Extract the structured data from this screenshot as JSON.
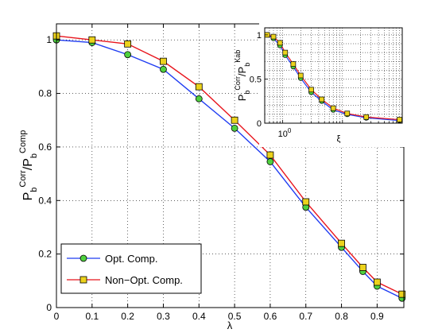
{
  "chart_data": [
    {
      "type": "line",
      "xlabel": "λ",
      "ylabel": {
        "base": "P",
        "sub1": "b",
        "sup1": "Corr",
        "sep": "/P",
        "sub2": "b",
        "sup2": "Comp"
      },
      "xlim": [
        0,
        0.975
      ],
      "ylim": [
        0,
        1.06
      ],
      "xticks": [
        "0",
        "0.1",
        "0.2",
        "0.3",
        "0.4",
        "0.5",
        "0.6",
        "0.7",
        "0.8",
        "0.9"
      ],
      "yticks": [
        "0",
        "0.2",
        "0.4",
        "0.6",
        "0.8",
        "1"
      ],
      "grid": true,
      "legend_position": "bottom-left",
      "series": [
        {
          "name": "Opt. Comp.",
          "color": "#1f3cf2",
          "marker": "circle",
          "marker_color": "#4fd13f",
          "x": [
            0,
            0.1,
            0.2,
            0.3,
            0.4,
            0.5,
            0.6,
            0.7,
            0.8,
            0.86,
            0.9,
            0.97
          ],
          "y": [
            1.0,
            0.99,
            0.945,
            0.89,
            0.78,
            0.67,
            0.545,
            0.375,
            0.225,
            0.135,
            0.08,
            0.035
          ]
        },
        {
          "name": "Non−Opt. Comp.",
          "color": "#e8141c",
          "marker": "square",
          "marker_color": "#ecd21c",
          "x": [
            0,
            0.1,
            0.2,
            0.3,
            0.4,
            0.5,
            0.6,
            0.7,
            0.8,
            0.86,
            0.9,
            0.97
          ],
          "y": [
            1.015,
            1.0,
            0.985,
            0.92,
            0.825,
            0.7,
            0.57,
            0.395,
            0.24,
            0.15,
            0.095,
            0.05
          ]
        }
      ]
    },
    {
      "type": "line",
      "xlabel": "ξ",
      "xscale": "log",
      "ylabel": {
        "base": "P",
        "sub1": "b",
        "sup1": "Corr",
        "sep": "/P",
        "sub2": "b",
        "sup2": "Kab"
      },
      "xlim": [
        0.5,
        100
      ],
      "ylim": [
        0,
        1.08
      ],
      "xtick_major": "10",
      "xtick_major_exp": "0",
      "yticks": [
        "0",
        "0.5",
        "1"
      ],
      "grid": true,
      "series": [
        {
          "color": "#1f3cf2",
          "marker": "circle",
          "marker_color": "#4fd13f",
          "x": [
            0.55,
            0.7,
            0.9,
            1.1,
            1.5,
            2,
            3,
            4.5,
            7,
            12,
            25,
            90
          ],
          "y": [
            1.0,
            0.96,
            0.88,
            0.77,
            0.64,
            0.51,
            0.35,
            0.25,
            0.15,
            0.1,
            0.06,
            0.03
          ]
        },
        {
          "color": "#e8141c",
          "marker": "square",
          "marker_color": "#ecd21c",
          "x": [
            0.55,
            0.7,
            0.9,
            1.1,
            1.5,
            2,
            3,
            4.5,
            7,
            12,
            25,
            90
          ],
          "y": [
            1.0,
            0.98,
            0.91,
            0.8,
            0.67,
            0.54,
            0.38,
            0.27,
            0.17,
            0.11,
            0.07,
            0.04
          ]
        }
      ]
    }
  ]
}
